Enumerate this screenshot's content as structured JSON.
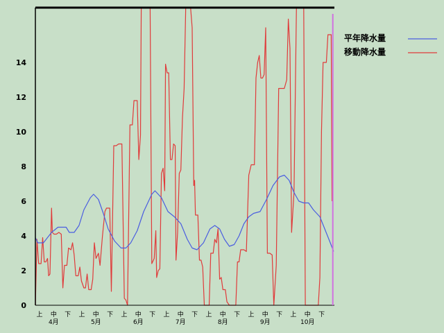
{
  "chart_data": {
    "type": "line",
    "title": "",
    "xlabel": "",
    "ylabel": "",
    "ylim": [
      0,
      17
    ],
    "yticks": [
      0,
      2,
      4,
      6,
      8,
      10,
      12,
      14
    ],
    "xlim": [
      0,
      18
    ],
    "x_sub_ticks": [
      "上",
      "中",
      "下",
      "上",
      "中",
      "下",
      "上",
      "中",
      "下",
      "上",
      "中",
      "下",
      "上",
      "中",
      "下",
      "上",
      "中",
      "下",
      "上",
      "中",
      "下"
    ],
    "x_months": [
      "4月",
      "5月",
      "6月",
      "7月",
      "8月",
      "9月",
      "10月"
    ],
    "grid": false,
    "legend_position": "top-right",
    "colors": {
      "background": "#c8dfc8",
      "frame": "#000000",
      "normal": "#4a5de0",
      "moving": "#e03a3a",
      "marker": "#d070e0"
    },
    "series": [
      {
        "name": "平年降水量",
        "color": "#4a5de0",
        "points": [
          [
            0,
            3.9
          ],
          [
            0.15,
            3.6
          ],
          [
            0.5,
            3.6
          ],
          [
            1.0,
            4.2
          ],
          [
            1.4,
            4.5
          ],
          [
            1.9,
            4.5
          ],
          [
            2.1,
            4.2
          ],
          [
            2.4,
            4.2
          ],
          [
            2.7,
            4.6
          ],
          [
            3.0,
            5.5
          ],
          [
            3.4,
            6.2
          ],
          [
            3.6,
            6.4
          ],
          [
            3.9,
            6.1
          ],
          [
            4.2,
            5.3
          ],
          [
            4.5,
            4.4
          ],
          [
            4.9,
            3.7
          ],
          [
            5.3,
            3.3
          ],
          [
            5.6,
            3.3
          ],
          [
            5.9,
            3.6
          ],
          [
            6.3,
            4.3
          ],
          [
            6.7,
            5.4
          ],
          [
            7.2,
            6.4
          ],
          [
            7.4,
            6.6
          ],
          [
            7.8,
            6.2
          ],
          [
            8.2,
            5.4
          ],
          [
            8.6,
            5.1
          ],
          [
            9.0,
            4.7
          ],
          [
            9.4,
            3.8
          ],
          [
            9.7,
            3.3
          ],
          [
            10.0,
            3.2
          ],
          [
            10.4,
            3.6
          ],
          [
            10.8,
            4.4
          ],
          [
            11.1,
            4.6
          ],
          [
            11.4,
            4.4
          ],
          [
            11.7,
            3.8
          ],
          [
            12.0,
            3.4
          ],
          [
            12.3,
            3.5
          ],
          [
            12.6,
            4.0
          ],
          [
            12.9,
            4.7
          ],
          [
            13.2,
            5.1
          ],
          [
            13.5,
            5.3
          ],
          [
            13.9,
            5.4
          ],
          [
            14.3,
            6.1
          ],
          [
            14.7,
            6.9
          ],
          [
            15.1,
            7.4
          ],
          [
            15.4,
            7.5
          ],
          [
            15.7,
            7.2
          ],
          [
            16.0,
            6.5
          ],
          [
            16.3,
            6.0
          ],
          [
            16.6,
            5.9
          ],
          [
            16.9,
            5.9
          ],
          [
            17.2,
            5.5
          ],
          [
            17.6,
            5.1
          ],
          [
            17.9,
            4.4
          ],
          [
            18.2,
            3.7
          ],
          [
            18.45,
            3.1
          ]
        ]
      },
      {
        "name": "移動降水量",
        "color": "#e03a3a",
        "points": [
          [
            0.0,
            0
          ],
          [
            0.1,
            3.8
          ],
          [
            0.2,
            2.4
          ],
          [
            0.35,
            2.4
          ],
          [
            0.45,
            3.9
          ],
          [
            0.55,
            2.5
          ],
          [
            0.65,
            2.5
          ],
          [
            0.75,
            2.7
          ],
          [
            0.82,
            1.7
          ],
          [
            0.9,
            1.8
          ],
          [
            1.0,
            5.6
          ],
          [
            1.05,
            4.2
          ],
          [
            1.15,
            4.1
          ],
          [
            1.3,
            4.1
          ],
          [
            1.45,
            4.2
          ],
          [
            1.6,
            4.1
          ],
          [
            1.7,
            1.0
          ],
          [
            1.8,
            2.3
          ],
          [
            1.95,
            2.3
          ],
          [
            2.05,
            3.3
          ],
          [
            2.2,
            3.2
          ],
          [
            2.3,
            3.6
          ],
          [
            2.4,
            2.9
          ],
          [
            2.5,
            1.7
          ],
          [
            2.65,
            1.7
          ],
          [
            2.75,
            2.2
          ],
          [
            2.85,
            1.4
          ],
          [
            3.0,
            1.0
          ],
          [
            3.1,
            1.0
          ],
          [
            3.2,
            1.8
          ],
          [
            3.3,
            0.9
          ],
          [
            3.45,
            0.9
          ],
          [
            3.55,
            1.5
          ],
          [
            3.65,
            3.6
          ],
          [
            3.75,
            2.7
          ],
          [
            3.9,
            3.0
          ],
          [
            4.0,
            2.3
          ],
          [
            4.15,
            4.0
          ],
          [
            4.3,
            5.4
          ],
          [
            4.4,
            5.6
          ],
          [
            4.6,
            5.6
          ],
          [
            4.7,
            0.8
          ],
          [
            4.85,
            9.2
          ],
          [
            5.0,
            9.2
          ],
          [
            5.15,
            9.3
          ],
          [
            5.35,
            9.3
          ],
          [
            5.5,
            0.4
          ],
          [
            5.6,
            0.3
          ],
          [
            5.7,
            0.0
          ],
          [
            5.85,
            10.4
          ],
          [
            6.0,
            10.4
          ],
          [
            6.1,
            11.8
          ],
          [
            6.3,
            11.8
          ],
          [
            6.4,
            8.4
          ],
          [
            6.5,
            9.8
          ],
          [
            6.55,
            17.5
          ],
          [
            6.65,
            17.5
          ],
          [
            7.0,
            17.5
          ],
          [
            7.1,
            17.5
          ],
          [
            7.2,
            2.4
          ],
          [
            7.35,
            2.7
          ],
          [
            7.45,
            4.3
          ],
          [
            7.5,
            1.6
          ],
          [
            7.6,
            2.0
          ],
          [
            7.7,
            2.1
          ],
          [
            7.8,
            7.6
          ],
          [
            7.9,
            7.9
          ],
          [
            8.0,
            6.6
          ],
          [
            8.05,
            13.9
          ],
          [
            8.15,
            13.4
          ],
          [
            8.25,
            13.4
          ],
          [
            8.35,
            8.4
          ],
          [
            8.45,
            8.4
          ],
          [
            8.55,
            9.3
          ],
          [
            8.65,
            9.2
          ],
          [
            8.7,
            2.6
          ],
          [
            8.8,
            4.2
          ],
          [
            8.9,
            7.6
          ],
          [
            9.0,
            7.8
          ],
          [
            9.1,
            10.8
          ],
          [
            9.2,
            12.5
          ],
          [
            9.3,
            17.5
          ],
          [
            9.45,
            17.5
          ],
          [
            9.6,
            17.5
          ],
          [
            9.7,
            16.0
          ],
          [
            9.8,
            6.9
          ],
          [
            9.85,
            7.2
          ],
          [
            9.9,
            5.2
          ],
          [
            10.05,
            5.2
          ],
          [
            10.15,
            2.6
          ],
          [
            10.25,
            2.6
          ],
          [
            10.35,
            2.2
          ],
          [
            10.45,
            0.0
          ],
          [
            10.6,
            0.0
          ],
          [
            10.7,
            0.0
          ],
          [
            10.75,
            0.0
          ],
          [
            10.85,
            3.0
          ],
          [
            11.0,
            3.0
          ],
          [
            11.1,
            3.8
          ],
          [
            11.2,
            3.6
          ],
          [
            11.3,
            4.4
          ],
          [
            11.4,
            1.5
          ],
          [
            11.5,
            1.6
          ],
          [
            11.6,
            0.9
          ],
          [
            11.75,
            0.9
          ],
          [
            11.85,
            0.2
          ],
          [
            12.0,
            0.0
          ],
          [
            12.3,
            0.0
          ],
          [
            12.4,
            0.0
          ],
          [
            12.5,
            2.5
          ],
          [
            12.6,
            2.5
          ],
          [
            12.7,
            3.2
          ],
          [
            12.9,
            3.2
          ],
          [
            13.05,
            3.1
          ],
          [
            13.2,
            7.5
          ],
          [
            13.35,
            8.1
          ],
          [
            13.55,
            8.1
          ],
          [
            13.65,
            13.1
          ],
          [
            13.75,
            14.0
          ],
          [
            13.85,
            14.4
          ],
          [
            13.95,
            13.1
          ],
          [
            14.05,
            13.1
          ],
          [
            14.15,
            13.3
          ],
          [
            14.25,
            16.0
          ],
          [
            14.35,
            3.0
          ],
          [
            14.5,
            3.0
          ],
          [
            14.65,
            2.9
          ],
          [
            14.75,
            0.0
          ],
          [
            14.9,
            2.3
          ],
          [
            15.05,
            12.5
          ],
          [
            15.25,
            12.5
          ],
          [
            15.4,
            12.5
          ],
          [
            15.55,
            13.0
          ],
          [
            15.65,
            16.5
          ],
          [
            15.75,
            14.8
          ],
          [
            15.85,
            4.2
          ],
          [
            16.0,
            6.5
          ],
          [
            16.15,
            17.5
          ],
          [
            16.4,
            17.5
          ],
          [
            16.5,
            17.5
          ],
          [
            16.6,
            17.5
          ],
          [
            16.7,
            0.0
          ],
          [
            16.85,
            0.0
          ],
          [
            17.05,
            0.0
          ],
          [
            17.25,
            0.0
          ],
          [
            17.4,
            0.0
          ],
          [
            17.5,
            0.0
          ],
          [
            17.6,
            1.6
          ],
          [
            17.7,
            10.0
          ],
          [
            17.8,
            14.0
          ],
          [
            17.9,
            14.0
          ],
          [
            18.0,
            14.0
          ],
          [
            18.1,
            15.6
          ],
          [
            18.2,
            15.6
          ],
          [
            18.3,
            15.6
          ],
          [
            18.35,
            6.0
          ]
        ]
      }
    ],
    "marker_x": 18.4
  }
}
